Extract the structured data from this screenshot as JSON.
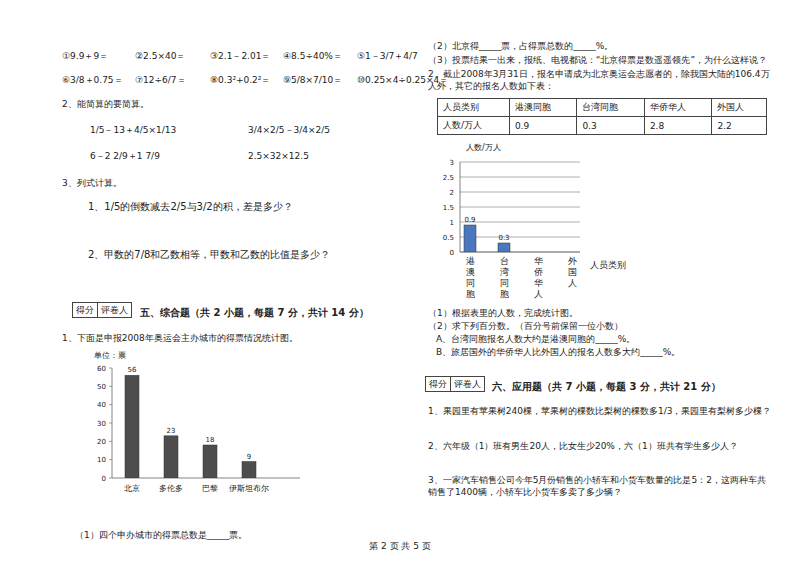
{
  "left": {
    "calc_row1": [
      "①9.9＋9＝",
      "②2.5×40＝",
      "③2.1－2.01＝",
      "④8.5÷40%＝",
      "⑤1－3/7＋4/7"
    ],
    "calc_row2": [
      "⑥3/8＋0.75＝",
      "⑦12÷6/7＝",
      "⑧0.3²+0.2²＝",
      "⑨5/8×7/10＝",
      "⑩0.25×4÷0.25×4＝"
    ],
    "q2_title": "2、能简算的要简算。",
    "q2_items": [
      "1/5－13＋4/5×1/13",
      "3/4×2/5－3/4×2/5",
      "6－2 2/9＋1 7/9",
      "2.5×32×12.5"
    ],
    "q3_title": "3、列式计算。",
    "q3_items": [
      "1、1/5的倒数减去2/5与3/2的积，差是多少？",
      "2、甲数的7/8和乙数相等，甲数和乙数的比值是多少？"
    ],
    "score_box": [
      "得分",
      "评卷人"
    ],
    "section_title": "五、综合题（共 2 小题，每题 7 分，共计 14 分）",
    "q1": "1、下面是申报2008年奥运会主办城市的得票情况统计图。",
    "q1_sub1": "（1）四个申办城市的得票总数是_____票。"
  },
  "right": {
    "q1_sub2": "（2）北京得_____票，占得票总数的_____%。",
    "q1_sub3": "（3）投票结果一出来，报纸、电视都说：“北京得票是数遥遥领先”，为什么这样说？",
    "q2": "2、截止2008年3月31日，报名申请成为北京奥运会志愿者的，除我国大陆的106.4万人外，其它的报名人数如下表：",
    "table": {
      "header": [
        "人员类别",
        "港澳同胞",
        "台湾同胞",
        "华侨华人",
        "外国人"
      ],
      "rows": [
        [
          "人数/万人",
          0.9,
          0.3,
          2.8,
          2.2
        ]
      ]
    },
    "q2_sub1": "（1）根据表里的人数，完成统计图。",
    "q2_sub2": "（2）求下列百分数。（百分号前保留一位小数）",
    "q2_subA": "A、台湾同胞报名人数大约是港澳同胞的_____%。",
    "q2_subB": "B、旅居国外的华侨华人比外国人的报名人数多大约_____%。",
    "score_box": [
      "得分",
      "评卷人"
    ],
    "section_title": "六、应用题（共 7 小题，每题 3 分，共计 21 分）",
    "app_items": [
      "1、果园里有苹果树240棵，苹果树的棵数比梨树的棵数多1/3，果园里有梨树多少棵？",
      "2、六年级（1）班有男生20人，比女生少20%，六（1）班共有学生多少人？",
      "3、一家汽车销售公司今年5月份销售的小轿车和小货车数量的比是5：2，这两种车共销售了1400辆，小轿车比小货车多卖了多少辆？"
    ]
  },
  "footer": "第 2 页 共 5 页",
  "chart_data": [
    {
      "type": "bar",
      "y_label": "单位：票",
      "categories": [
        "北京",
        "多伦多",
        "巴黎",
        "伊斯坦布尔"
      ],
      "values": [
        56,
        23,
        18,
        9
      ],
      "color": "#4d4d4d",
      "ylim": [
        0,
        60
      ],
      "yticks": [
        0,
        10,
        20,
        30,
        40,
        50,
        60
      ],
      "grid": false,
      "data_labels": true
    },
    {
      "type": "bar",
      "y_label": "人数/万人",
      "x_label": "人员类别",
      "categories": [
        "港澳同胞",
        "台湾同胞",
        "华侨华人",
        "外国人"
      ],
      "values": [
        0.9,
        0.3,
        null,
        null
      ],
      "color": "#4a78c0",
      "ylim": [
        0,
        3
      ],
      "yticks": [
        0,
        0.5,
        1,
        1.5,
        2,
        2.5,
        3
      ],
      "grid": true,
      "data_labels": true
    }
  ]
}
